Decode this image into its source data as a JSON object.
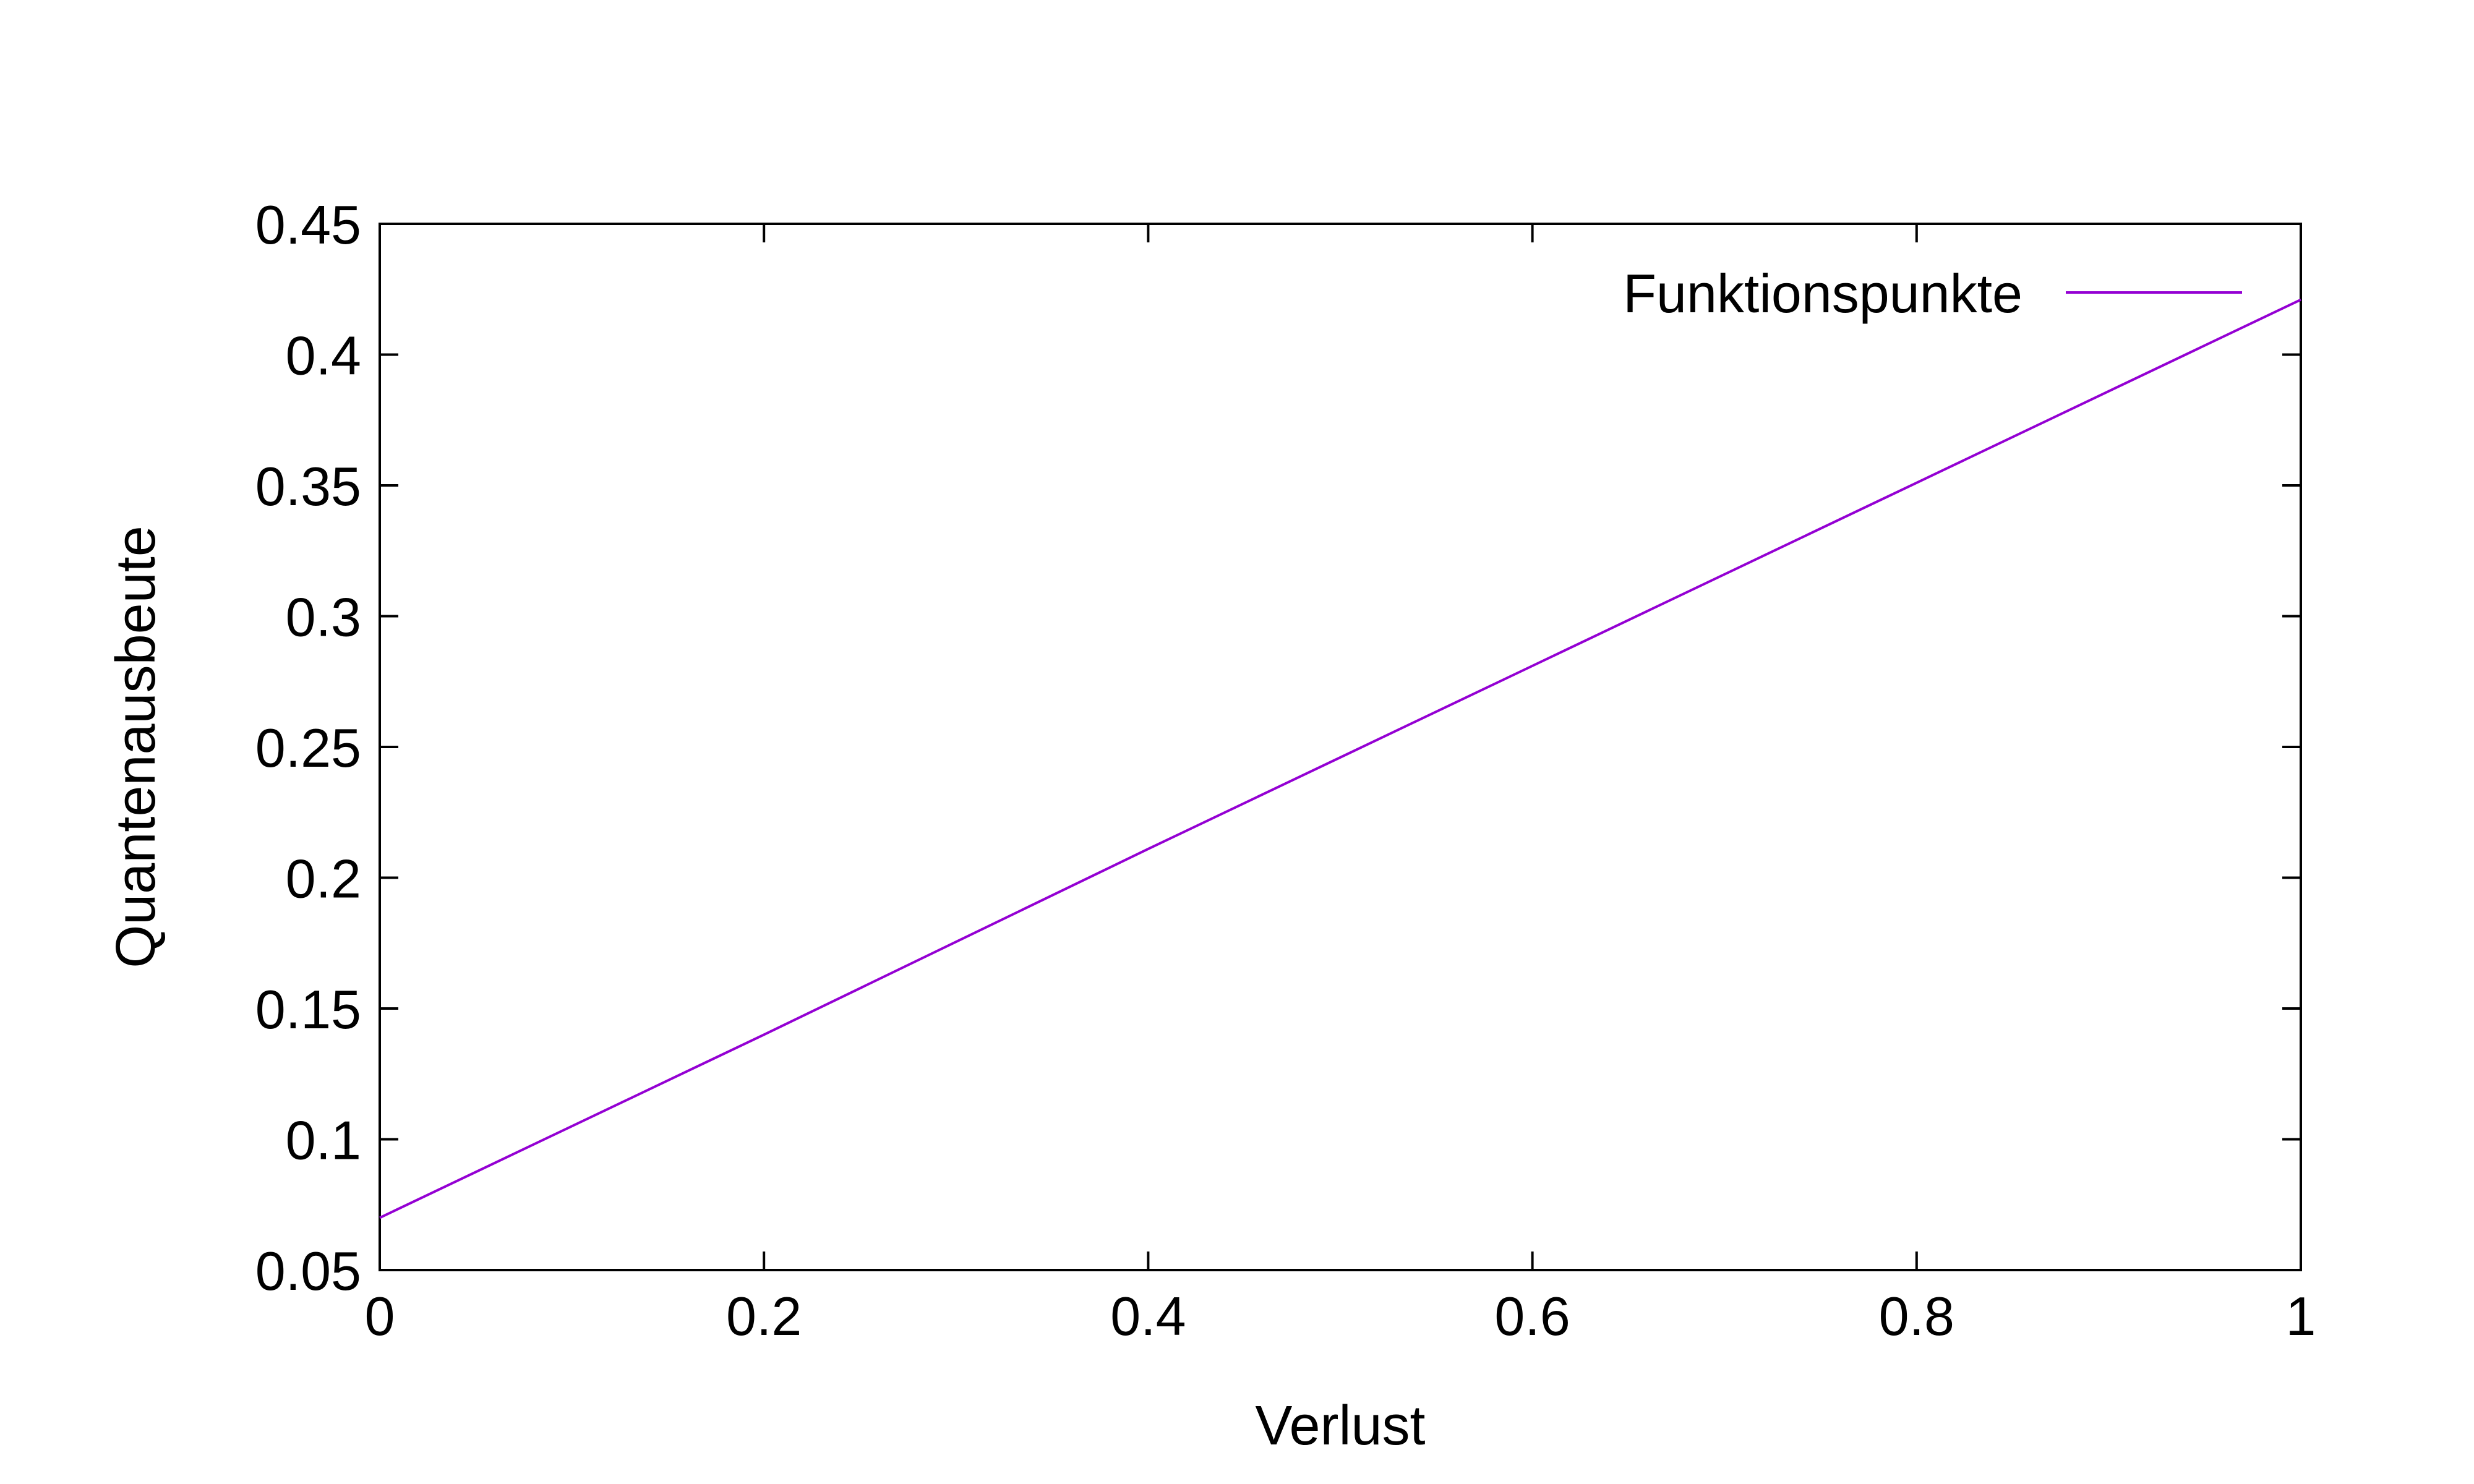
{
  "chart_data": {
    "type": "line",
    "title": "",
    "xlabel": "Verlust",
    "ylabel": "Quantenausbeute",
    "xlim": [
      0,
      1
    ],
    "ylim": [
      0.05,
      0.45
    ],
    "grid": false,
    "legend_position": "top-right",
    "x_ticks": [
      "0",
      "0.2",
      "0.4",
      "0.6",
      "0.8",
      "1"
    ],
    "y_ticks": [
      "0.05",
      "0.1",
      "0.15",
      "0.2",
      "0.25",
      "0.3",
      "0.35",
      "0.4",
      "0.45"
    ],
    "series": [
      {
        "name": "Funktionspunkte",
        "color": "#9400d3",
        "x": [
          0,
          0.2,
          0.4,
          0.6,
          0.8,
          1
        ],
        "y": [
          0.07,
          0.14,
          0.211,
          0.281,
          0.351,
          0.421
        ]
      }
    ]
  }
}
